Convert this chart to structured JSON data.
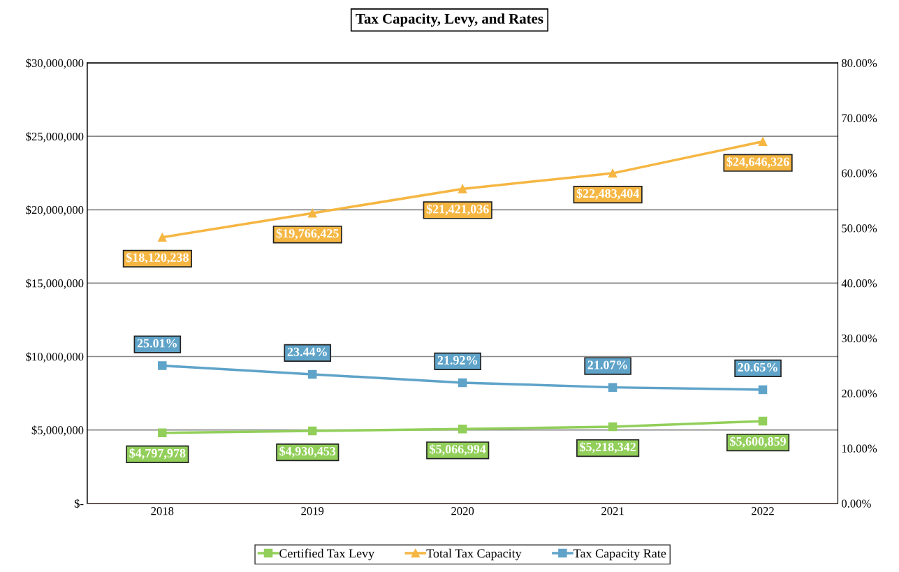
{
  "chart_data": {
    "type": "line",
    "title": "Tax Capacity, Levy, and Rates",
    "categories": [
      "2018",
      "2019",
      "2020",
      "2021",
      "2022"
    ],
    "series": [
      {
        "name": "Certified Tax Levy",
        "color": "#92cf5a",
        "marker": "square",
        "values": [
          4797978,
          4930453,
          5066994,
          5218342,
          5600859
        ],
        "value_labels": [
          "$4,797,978",
          "$4,930,453",
          "$5,066,994",
          "$5,218,342",
          "$5,600,859"
        ]
      },
      {
        "name": "Total Tax Capacity",
        "color": "#f5b642",
        "marker": "triangle",
        "values": [
          18120238,
          19766425,
          21421036,
          22483404,
          24646326
        ],
        "value_labels": [
          "$18,120,238",
          "$19,766,425",
          "$21,421,036",
          "$22,483,404",
          "$24,646,326"
        ]
      },
      {
        "name": "Tax Capacity Rate",
        "color": "#5fa3c9",
        "marker": "square",
        "axis": "y2",
        "values": [
          25.01,
          23.44,
          21.92,
          21.07,
          20.65
        ],
        "value_labels": [
          "25.01%",
          "23.44%",
          "21.92%",
          "21.07%",
          "20.65%"
        ]
      }
    ],
    "ylim": [
      0,
      30000000
    ],
    "yticks": [
      {
        "value": 0,
        "label": "$-"
      },
      {
        "value": 5000000,
        "label": "$5,000,000"
      },
      {
        "value": 10000000,
        "label": "$10,000,000"
      },
      {
        "value": 15000000,
        "label": "$15,000,000"
      },
      {
        "value": 20000000,
        "label": "$20,000,000"
      },
      {
        "value": 25000000,
        "label": "$25,000,000"
      },
      {
        "value": 30000000,
        "label": "$30,000,000"
      }
    ],
    "y2lim": [
      0,
      80
    ],
    "y2ticks": [
      {
        "value": 0,
        "label": "0.00%"
      },
      {
        "value": 10,
        "label": "10.00%"
      },
      {
        "value": 20,
        "label": "20.00%"
      },
      {
        "value": 30,
        "label": "30.00%"
      },
      {
        "value": 40,
        "label": "40.00%"
      },
      {
        "value": 50,
        "label": "50.00%"
      },
      {
        "value": 60,
        "label": "60.00%"
      },
      {
        "value": 70,
        "label": "70.00%"
      },
      {
        "value": 80,
        "label": "80.00%"
      }
    ],
    "grid": "y",
    "legend": "bottom"
  }
}
